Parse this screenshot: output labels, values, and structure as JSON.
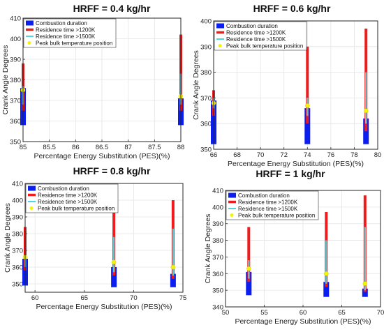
{
  "legend_labels": [
    "Combustion duration",
    "Residence time >1200K",
    "Residence time >1500K",
    "Peak bulk temperature position"
  ],
  "colors": {
    "combustion": "#0a1ef0",
    "res1200": "#ee1c1c",
    "res1500": "#50d6e0",
    "peak": "#f4f40a",
    "inner": "#9a9a9a",
    "axis": "#262626"
  },
  "chart_data": [
    {
      "type": "bar",
      "title": "HRFF = 0.4 kg/hr",
      "xlabel": "Percentage Energy Substitution (PES)(%)",
      "ylabel": "Crank Angle Degrees",
      "xlim": [
        85,
        88
      ],
      "ylim": [
        350,
        410
      ],
      "xticks": [
        "85",
        "85.5",
        "86",
        "86.5",
        "87",
        "87.5",
        "88"
      ],
      "yticks": [
        "350",
        "360",
        "370",
        "380",
        "390",
        "400",
        "410"
      ],
      "grid": true,
      "legend": "top-left",
      "points": [
        {
          "x": 85,
          "combustion": [
            358,
            376
          ],
          "res1200": [
            365,
            388
          ],
          "res1500": [
            368,
            377
          ],
          "peak": 375
        },
        {
          "x": 88,
          "combustion": [
            358,
            371
          ],
          "res1200": [
            365,
            402
          ],
          "res1500": [
            368,
            383
          ],
          "peak": 372
        }
      ]
    },
    {
      "type": "bar",
      "title": "HRFF = 0.6 kg/hr",
      "xlabel": "Percentage Energy Substitution (PES)(%)",
      "ylabel": "Crank Angle Degrees",
      "xlim": [
        66,
        80
      ],
      "ylim": [
        350,
        400
      ],
      "xticks": [
        "66",
        "68",
        "70",
        "72",
        "74",
        "76",
        "78",
        "80"
      ],
      "yticks": [
        "350",
        "360",
        "370",
        "380",
        "390",
        "400"
      ],
      "grid": true,
      "legend": "top-left",
      "points": [
        {
          "x": 66,
          "combustion": [
            352,
            369
          ],
          "res1200": [
            363,
            373
          ],
          "res1500": [
            366,
            370
          ],
          "peak": 368
        },
        {
          "x": 74,
          "combustion": [
            352,
            366
          ],
          "res1200": [
            360,
            390
          ],
          "res1500": [
            363,
            370
          ],
          "peak": 367
        },
        {
          "x": 79,
          "combustion": [
            352,
            362
          ],
          "res1200": [
            357,
            397
          ],
          "res1500": [
            360,
            380
          ],
          "peak": 365
        }
      ]
    },
    {
      "type": "bar",
      "title": "HRFF = 0.8 kg/hr",
      "xlabel": "Percentage Energy Substitution (PES)(%)",
      "ylabel": "Crank Angle Degrees",
      "xlim": [
        59,
        75
      ],
      "ylim": [
        345,
        410
      ],
      "xticks": [
        "60",
        "65",
        "70",
        "75"
      ],
      "yticks": [
        "350",
        "360",
        "370",
        "380",
        "390",
        "400",
        "410"
      ],
      "grid": true,
      "legend": "top-left",
      "points": [
        {
          "x": 59,
          "combustion": [
            349,
            365
          ],
          "res1200": [
            358,
            384
          ],
          "res1500": [
            360,
            367
          ],
          "peak": 366
        },
        {
          "x": 68,
          "combustion": [
            348,
            360
          ],
          "res1200": [
            355,
            395
          ],
          "res1500": [
            357,
            378
          ],
          "peak": 363
        },
        {
          "x": 74,
          "combustion": [
            348,
            356
          ],
          "res1200": [
            353,
            400
          ],
          "res1500": [
            355,
            383
          ],
          "peak": 360
        }
      ]
    },
    {
      "type": "bar",
      "title": "HRFF = 1 kg/hr",
      "xlabel": "Percentage Energy Substitution (PES)(%)",
      "ylabel": "Crank Angle Degrees",
      "xlim": [
        50,
        70
      ],
      "ylim": [
        340,
        410
      ],
      "xticks": [
        "50",
        "55",
        "60",
        "65",
        "70"
      ],
      "yticks": [
        "340",
        "350",
        "360",
        "370",
        "380",
        "390",
        "400",
        "410"
      ],
      "grid": true,
      "legend": "top-left",
      "points": [
        {
          "x": 53,
          "combustion": [
            347,
            361
          ],
          "res1200": [
            355,
            388
          ],
          "res1500": [
            357,
            368
          ],
          "peak": 363
        },
        {
          "x": 63,
          "combustion": [
            346,
            355
          ],
          "res1200": [
            352,
            397
          ],
          "res1500": [
            354,
            380
          ],
          "peak": 360
        },
        {
          "x": 68,
          "combustion": [
            346,
            351
          ],
          "res1200": [
            349,
            407
          ],
          "res1500": [
            350,
            388
          ],
          "peak": 354
        }
      ]
    }
  ]
}
